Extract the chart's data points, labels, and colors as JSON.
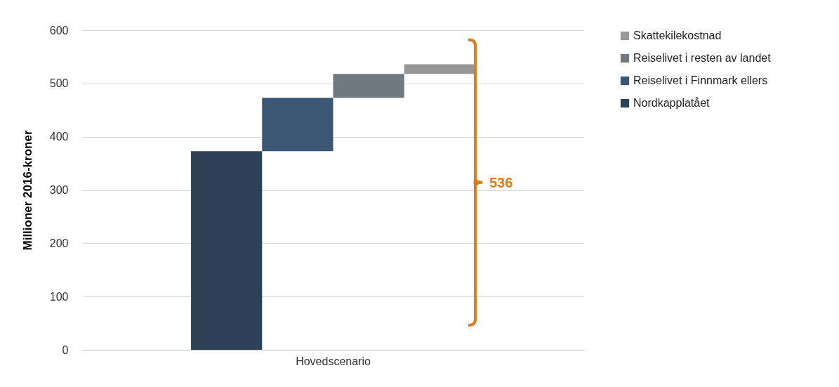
{
  "chart_data": {
    "type": "bar",
    "ylabel": "Millioner 2016-kroner",
    "categories": [
      "Hovedscenario"
    ],
    "series": [
      {
        "name": "Nordkapplatået",
        "color": "#2d4157",
        "values": [
          373
        ],
        "base": [
          0
        ]
      },
      {
        "name": "Reiselivet i Finnmark ellers",
        "color": "#3a5673",
        "values": [
          100
        ],
        "base": [
          373
        ]
      },
      {
        "name": "Reiselivet i resten av landet",
        "color": "#707880",
        "values": [
          45
        ],
        "base": [
          473
        ]
      },
      {
        "name": "Skattekilekostnad",
        "color": "#979797",
        "values": [
          18
        ],
        "base": [
          518
        ]
      }
    ],
    "ylim": [
      0,
      600
    ],
    "yticks": [
      0,
      100,
      200,
      300,
      400,
      500,
      600
    ],
    "grid": "y",
    "legend": "right",
    "annotations": [
      "536"
    ]
  }
}
